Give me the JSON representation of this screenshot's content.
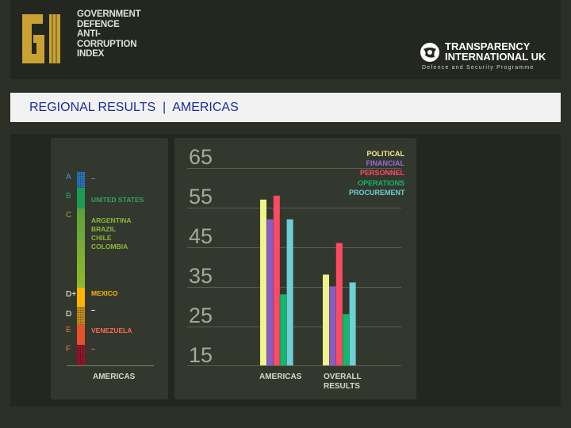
{
  "header": {
    "logo_mark": "GI",
    "logo_lines": [
      "GOVERNMENT",
      "DEFENCE",
      "ANTI-",
      "CORRUPTION",
      "INDEX"
    ],
    "ti_name_line1": "TRANSPARENCY",
    "ti_name_line2": "INTERNATIONAL UK",
    "ti_tagline": "Defence and Security Programme"
  },
  "title": "REGIONAL RESULTS  |  AMERICAS",
  "bands": {
    "A": {
      "label": "A",
      "countries": [
        "–"
      ]
    },
    "B": {
      "label": "B",
      "countries": [
        "UNITED STATES"
      ]
    },
    "C": {
      "label": "C",
      "countries": [
        "ARGENTINA",
        "BRAZIL",
        "CHILE",
        "COLOMBIA"
      ]
    },
    "D_plus": {
      "label": "D+",
      "countries": [
        "MEXICO"
      ]
    },
    "D": {
      "label": "D",
      "countries": [
        "–"
      ]
    },
    "E": {
      "label": "E",
      "countries": [
        "VENEZUELA"
      ]
    },
    "F": {
      "label": "F",
      "countries": [
        "–"
      ]
    }
  },
  "band_colors": {
    "A": "#2e7fc2",
    "B": "#1f9a52",
    "C": "#7ab134",
    "D_plus": "#ffb400",
    "D": "#e8a820",
    "E": "#e8522a",
    "F": "#a8182e"
  },
  "left_axis_label": "AMERICAS",
  "chart_data": {
    "type": "bar",
    "categories": [
      "AMERICAS",
      "OVERALL RESULTS"
    ],
    "ylim": [
      15,
      65
    ],
    "yticks": [
      65,
      55,
      45,
      35,
      25,
      15
    ],
    "series": [
      {
        "name": "POLITICAL",
        "color": "#f0f28a",
        "values": [
          57,
          38
        ]
      },
      {
        "name": "FINANCIAL",
        "color": "#8a5cc8",
        "values": [
          52,
          35
        ]
      },
      {
        "name": "PERSONNEL",
        "color": "#ff4a63",
        "values": [
          58,
          46
        ]
      },
      {
        "name": "OPERATIONS",
        "color": "#12b86a",
        "values": [
          33,
          28
        ]
      },
      {
        "name": "PROCUREMENT",
        "color": "#6dd0d6",
        "values": [
          52,
          36
        ]
      }
    ],
    "legend_position": "top-right",
    "grid": true
  }
}
